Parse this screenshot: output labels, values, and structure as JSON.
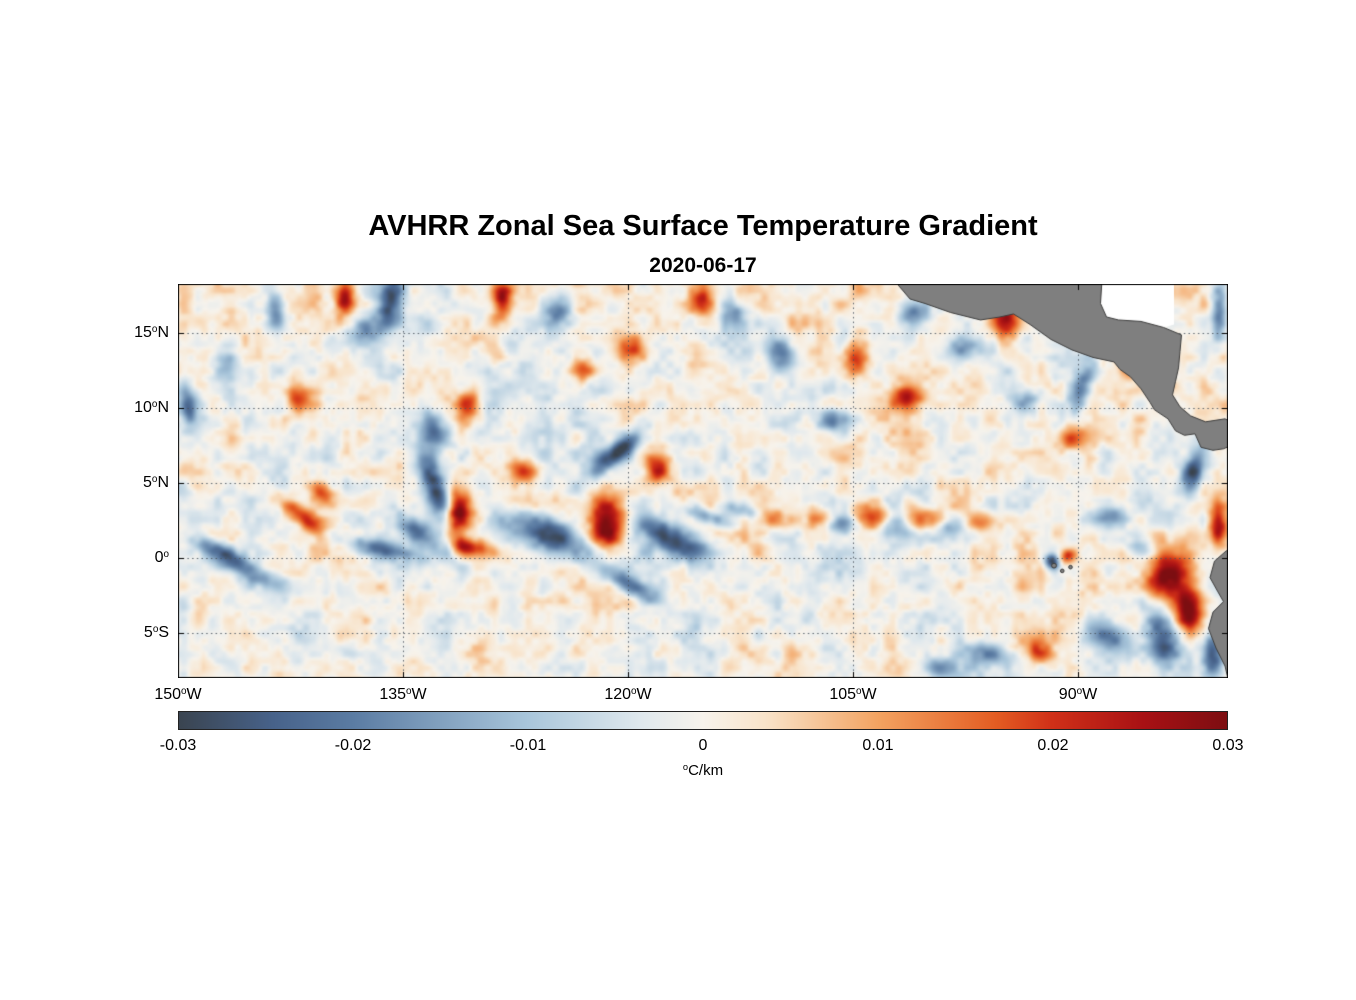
{
  "title": "AVHRR Zonal Sea Surface Temperature Gradient",
  "subtitle": "2020-06-17",
  "axes": {
    "deg_symbol": "o",
    "lon_ticks": [
      {
        "deg": "150",
        "dir": "W",
        "value": -150
      },
      {
        "deg": "135",
        "dir": "W",
        "value": -135
      },
      {
        "deg": "120",
        "dir": "W",
        "value": -120
      },
      {
        "deg": "105",
        "dir": "W",
        "value": -105
      },
      {
        "deg": "90",
        "dir": "W",
        "value": -90
      }
    ],
    "lat_ticks": [
      {
        "deg": "15",
        "dir": "N",
        "value": 15
      },
      {
        "deg": "10",
        "dir": "N",
        "value": 10
      },
      {
        "deg": "5",
        "dir": "N",
        "value": 5
      },
      {
        "deg": "0",
        "dir": "",
        "value": 0
      },
      {
        "deg": "5",
        "dir": "S",
        "value": -5
      }
    ]
  },
  "colorbar": {
    "ticks": [
      "-0.03",
      "-0.02",
      "-0.01",
      "0",
      "0.01",
      "0.02",
      "0.03"
    ],
    "tick_values": [
      -0.03,
      -0.02,
      -0.01,
      0,
      0.01,
      0.02,
      0.03
    ],
    "units_deg": "o",
    "units": "C/km",
    "stops": [
      {
        "t": 0.0,
        "c": "#3a4450"
      },
      {
        "t": 0.09,
        "c": "#47628a"
      },
      {
        "t": 0.167,
        "c": "#5b7ca3"
      },
      {
        "t": 0.333,
        "c": "#a9c6db"
      },
      {
        "t": 0.44,
        "c": "#dfe8ed"
      },
      {
        "t": 0.5,
        "c": "#f7f3ec"
      },
      {
        "t": 0.56,
        "c": "#f8e3c9"
      },
      {
        "t": 0.667,
        "c": "#f3a361"
      },
      {
        "t": 0.78,
        "c": "#e35c22"
      },
      {
        "t": 0.833,
        "c": "#d03018"
      },
      {
        "t": 0.92,
        "c": "#a81114"
      },
      {
        "t": 1.0,
        "c": "#7d0e11"
      }
    ]
  },
  "chart_data": {
    "type": "heatmap",
    "title": "AVHRR Zonal Sea Surface Temperature Gradient",
    "date": "2020-06-17",
    "units": "°C/km",
    "clim": [
      -0.03,
      0.03
    ],
    "lon_range": [
      -150,
      -80
    ],
    "lat_range": [
      -8,
      18.3
    ],
    "land_color": "#7f7f7f",
    "coast_color": "#3c3c3c",
    "grid": "dotted",
    "features_format": [
      "lon",
      "lat",
      "amplitude_C_per_km",
      "sigma_lon_deg",
      "sigma_lat_deg",
      "rotation_deg"
    ],
    "features": [
      [
        -132.8,
        4.5,
        -0.03,
        0.6,
        2.0,
        20
      ],
      [
        -133.9,
        1.8,
        -0.024,
        1.6,
        0.6,
        -30
      ],
      [
        -131.4,
        3.0,
        0.032,
        0.7,
        1.2,
        0
      ],
      [
        -131.0,
        0.8,
        0.02,
        0.9,
        0.5,
        -20
      ],
      [
        -141.8,
        2.8,
        0.022,
        1.8,
        0.5,
        -40
      ],
      [
        -140.3,
        4.3,
        0.015,
        0.8,
        0.5,
        -40
      ],
      [
        -145.8,
        -0.6,
        -0.022,
        2.2,
        0.5,
        -25
      ],
      [
        -147.6,
        0.7,
        -0.015,
        1.2,
        0.4,
        -25
      ],
      [
        -136.3,
        0.6,
        -0.024,
        2.2,
        0.5,
        -12
      ],
      [
        -125.3,
        1.6,
        -0.03,
        2.0,
        0.9,
        -18
      ],
      [
        -121.4,
        2.3,
        0.033,
        0.9,
        1.3,
        0
      ],
      [
        -120.8,
        7.0,
        -0.028,
        1.5,
        0.5,
        40
      ],
      [
        -117.2,
        1.4,
        -0.028,
        2.0,
        0.8,
        -22
      ],
      [
        -119.9,
        -1.8,
        -0.02,
        1.8,
        0.5,
        -28
      ],
      [
        -118.1,
        6.0,
        0.022,
        0.7,
        0.8,
        0
      ],
      [
        -114.8,
        2.8,
        -0.018,
        1.4,
        0.4,
        -15
      ],
      [
        -112.5,
        3.2,
        -0.014,
        1.0,
        0.4,
        -15
      ],
      [
        -110.3,
        2.6,
        0.016,
        0.8,
        0.5,
        0
      ],
      [
        -107.3,
        2.7,
        0.018,
        0.8,
        0.6,
        0
      ],
      [
        -105.6,
        2.2,
        -0.016,
        0.8,
        0.5,
        0
      ],
      [
        -103.8,
        2.7,
        0.02,
        0.8,
        0.6,
        0
      ],
      [
        -102.1,
        2.2,
        -0.014,
        0.7,
        0.5,
        0
      ],
      [
        -100.4,
        2.6,
        0.018,
        0.8,
        0.6,
        0
      ],
      [
        -98.4,
        2.0,
        -0.013,
        0.8,
        0.5,
        0
      ],
      [
        -96.6,
        2.4,
        0.015,
        0.8,
        0.5,
        0
      ],
      [
        -91.7,
        -0.2,
        -0.032,
        0.4,
        0.4,
        0
      ],
      [
        -90.8,
        0.1,
        0.018,
        0.5,
        0.4,
        0
      ],
      [
        -84.0,
        -1.2,
        0.032,
        1.1,
        1.4,
        10
      ],
      [
        -82.6,
        -3.6,
        0.03,
        0.7,
        1.2,
        0
      ],
      [
        -84.3,
        -5.6,
        -0.03,
        0.9,
        1.6,
        12
      ],
      [
        -88.1,
        -5.2,
        -0.02,
        1.1,
        0.7,
        -20
      ],
      [
        -92.8,
        -6.2,
        0.018,
        1.1,
        0.6,
        -15
      ],
      [
        -95.9,
        -6.4,
        -0.018,
        1.1,
        0.6,
        -10
      ],
      [
        -99.6,
        -7.3,
        -0.013,
        1.0,
        0.5,
        0
      ],
      [
        -94.9,
        15.9,
        0.028,
        0.9,
        0.9,
        0
      ],
      [
        -97.6,
        14.1,
        -0.018,
        0.9,
        0.7,
        0
      ],
      [
        -89.8,
        11.2,
        -0.022,
        0.5,
        1.2,
        -20
      ],
      [
        -101.4,
        10.8,
        0.022,
        0.8,
        0.7,
        0
      ],
      [
        -106.2,
        9.2,
        -0.018,
        0.8,
        0.6,
        0
      ],
      [
        -135.9,
        17.0,
        -0.028,
        0.6,
        1.2,
        -10
      ],
      [
        -137.6,
        15.0,
        -0.018,
        0.7,
        0.7,
        0
      ],
      [
        -138.9,
        17.4,
        0.024,
        0.5,
        0.8,
        0
      ],
      [
        -128.4,
        17.3,
        0.026,
        0.5,
        0.9,
        0
      ],
      [
        -124.6,
        16.4,
        -0.02,
        0.7,
        0.8,
        0
      ],
      [
        -119.8,
        14.2,
        0.02,
        0.7,
        0.7,
        0
      ],
      [
        -122.9,
        12.6,
        0.018,
        0.8,
        0.6,
        0
      ],
      [
        -130.6,
        10.3,
        0.022,
        0.6,
        0.8,
        0
      ],
      [
        -133.0,
        8.6,
        -0.02,
        0.6,
        1.0,
        15
      ],
      [
        -142.0,
        10.6,
        0.02,
        0.6,
        0.8,
        0
      ],
      [
        -146.8,
        13.0,
        -0.016,
        0.6,
        0.9,
        0
      ],
      [
        -149.3,
        10.0,
        -0.018,
        0.4,
        1.0,
        0
      ],
      [
        -115.1,
        17.2,
        0.02,
        0.6,
        0.8,
        0
      ],
      [
        -112.9,
        16.2,
        -0.018,
        0.7,
        0.8,
        0
      ],
      [
        -109.8,
        13.6,
        -0.02,
        0.7,
        1.0,
        20
      ],
      [
        -104.8,
        13.2,
        0.022,
        0.7,
        0.9,
        0
      ],
      [
        -101.0,
        16.4,
        -0.02,
        0.8,
        0.7,
        0
      ],
      [
        -82.3,
        5.8,
        -0.024,
        0.5,
        1.3,
        -15
      ],
      [
        -80.6,
        2.2,
        0.026,
        0.5,
        1.0,
        0
      ],
      [
        -80.6,
        16.5,
        -0.022,
        0.4,
        1.5,
        0
      ],
      [
        -81.0,
        -6.5,
        -0.028,
        0.6,
        1.2,
        0
      ],
      [
        -126.9,
        5.8,
        0.016,
        0.7,
        0.6,
        0
      ],
      [
        -129.5,
        0.5,
        0.018,
        1.0,
        0.5,
        -15
      ],
      [
        -143.5,
        16.5,
        -0.02,
        0.5,
        0.9,
        0
      ],
      [
        -90.5,
        8.0,
        0.016,
        0.8,
        0.6,
        0
      ],
      [
        -93.5,
        10.5,
        -0.016,
        0.8,
        0.7,
        0
      ],
      [
        -88.0,
        3.0,
        -0.014,
        0.9,
        0.6,
        0
      ],
      [
        -85.5,
        0.5,
        -0.018,
        0.9,
        0.6,
        -20
      ],
      [
        -86.5,
        13.0,
        0.02,
        0.5,
        0.6,
        0
      ]
    ],
    "noise": {
      "seed": 7,
      "amp0": 0.004,
      "scale0": 3.5,
      "amp1": 0.005,
      "scale1": 1.1,
      "amp2": 0.0028,
      "scale2": 0.45
    },
    "land": {
      "middle_america": [
        [
          -102.3,
          18.6
        ],
        [
          -101.2,
          17.3
        ],
        [
          -100.2,
          17.0
        ],
        [
          -98.5,
          16.4
        ],
        [
          -96.5,
          15.9
        ],
        [
          -95.2,
          16.1
        ],
        [
          -94.3,
          16.3
        ],
        [
          -93.2,
          15.6
        ],
        [
          -91.8,
          14.6
        ],
        [
          -90.4,
          13.9
        ],
        [
          -89.0,
          13.4
        ],
        [
          -87.6,
          13.1
        ],
        [
          -87.2,
          12.6
        ],
        [
          -86.5,
          12.1
        ],
        [
          -85.8,
          11.3
        ],
        [
          -85.2,
          10.4
        ],
        [
          -84.9,
          9.9
        ],
        [
          -84.0,
          9.3
        ],
        [
          -83.5,
          8.5
        ],
        [
          -82.9,
          8.2
        ],
        [
          -82.2,
          8.3
        ],
        [
          -81.8,
          7.4
        ],
        [
          -81.0,
          7.2
        ],
        [
          -80.3,
          7.3
        ],
        [
          -79.6,
          7.6
        ],
        [
          -79.6,
          9.0
        ],
        [
          -80.2,
          9.3
        ],
        [
          -81.5,
          9.1
        ],
        [
          -82.5,
          9.5
        ],
        [
          -83.2,
          10.1
        ],
        [
          -83.7,
          10.9
        ],
        [
          -83.5,
          11.8
        ],
        [
          -83.3,
          12.7
        ],
        [
          -83.2,
          13.8
        ],
        [
          -83.1,
          14.9
        ],
        [
          -84.3,
          15.4
        ],
        [
          -85.8,
          15.8
        ],
        [
          -87.3,
          15.9
        ],
        [
          -88.1,
          16.1
        ],
        [
          -88.5,
          17.0
        ],
        [
          -88.4,
          18.6
        ]
      ],
      "caribbean_mask": [
        [
          -88.4,
          18.6
        ],
        [
          -88.5,
          17.0
        ],
        [
          -88.1,
          16.1
        ],
        [
          -87.3,
          15.9
        ],
        [
          -85.8,
          15.8
        ],
        [
          -84.3,
          15.4
        ],
        [
          -83.6,
          15.6
        ],
        [
          -83.6,
          18.6
        ]
      ],
      "south_america": [
        [
          -79.5,
          0.8
        ],
        [
          -80.1,
          0.5
        ],
        [
          -80.9,
          -0.2
        ],
        [
          -81.2,
          -1.3
        ],
        [
          -80.7,
          -2.2
        ],
        [
          -80.3,
          -2.9
        ],
        [
          -81.0,
          -3.6
        ],
        [
          -81.3,
          -4.7
        ],
        [
          -80.8,
          -6.0
        ],
        [
          -80.2,
          -7.2
        ],
        [
          -79.9,
          -8.5
        ],
        [
          -79.5,
          -8.5
        ]
      ],
      "galapagos": [
        [
          -91.6,
          -0.5
        ],
        [
          -91.05,
          -0.85
        ],
        [
          -90.5,
          -0.6
        ]
      ]
    }
  }
}
